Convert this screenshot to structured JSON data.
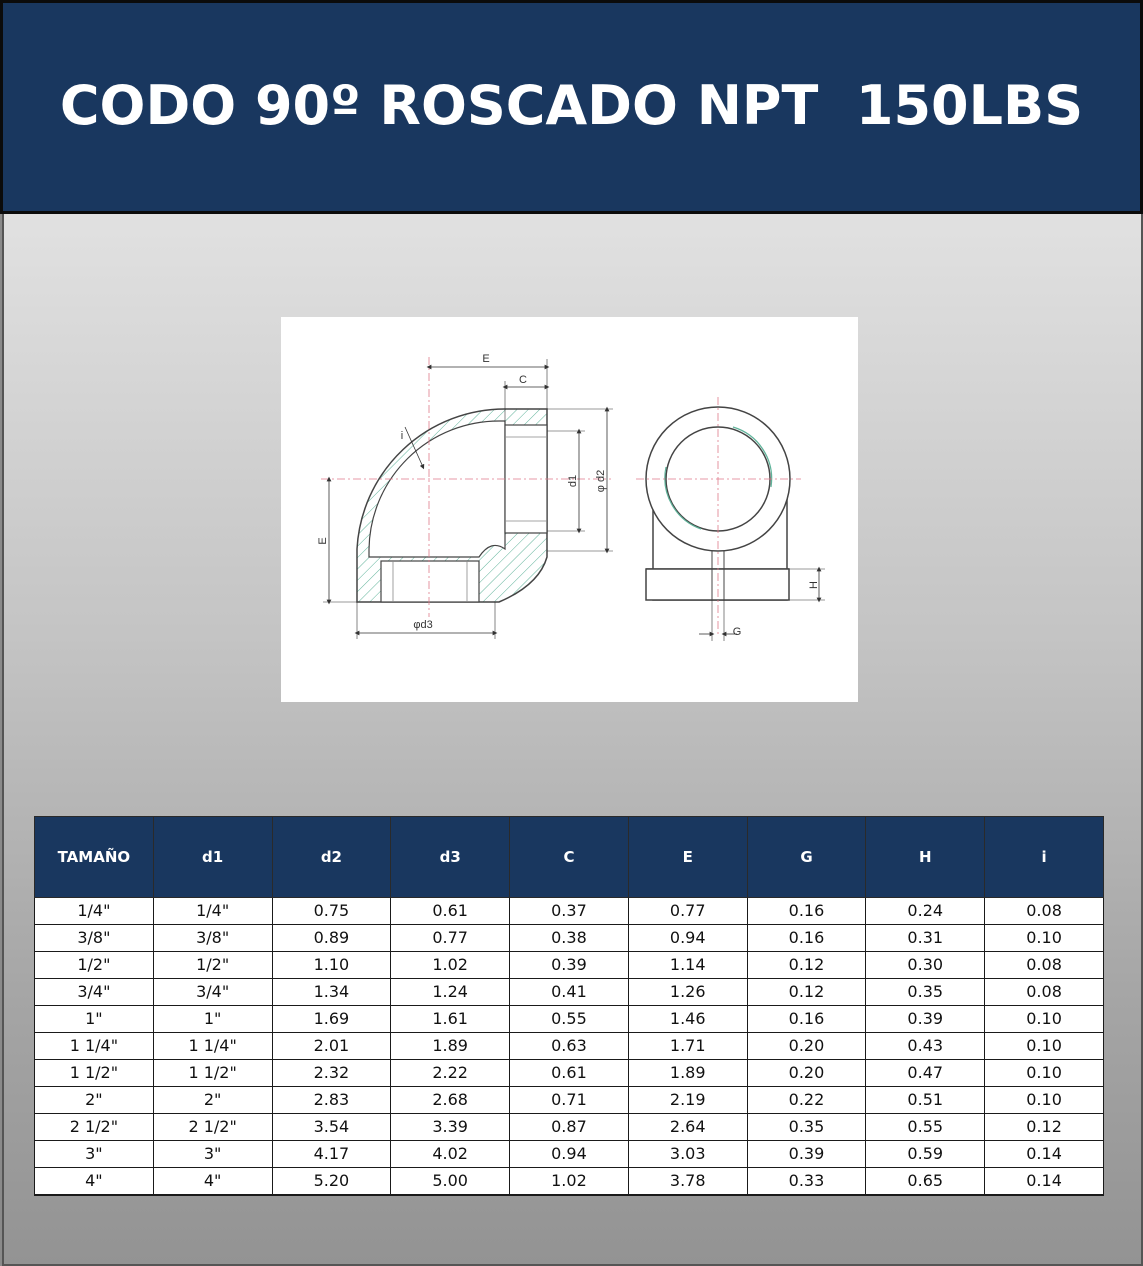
{
  "header": {
    "title": "CODO 90º ROSCADO NPT  150LBS"
  },
  "drawing": {
    "labels": {
      "E_top": "E",
      "C": "C",
      "i": "i",
      "d1": "d1",
      "d2": "φ d2",
      "E_left": "E",
      "d3": "φd3",
      "H": "H",
      "G": "G"
    }
  },
  "table": {
    "headers": [
      "TAMAÑO",
      "d1",
      "d2",
      "d3",
      "C",
      "E",
      "G",
      "H",
      "i"
    ],
    "rows": [
      [
        "1/4\"",
        "1/4\"",
        "0.75",
        "0.61",
        "0.37",
        "0.77",
        "0.16",
        "0.24",
        "0.08"
      ],
      [
        "3/8\"",
        "3/8\"",
        "0.89",
        "0.77",
        "0.38",
        "0.94",
        "0.16",
        "0.31",
        "0.10"
      ],
      [
        "1/2\"",
        "1/2\"",
        "1.10",
        "1.02",
        "0.39",
        "1.14",
        "0.12",
        "0.30",
        "0.08"
      ],
      [
        "3/4\"",
        "3/4\"",
        "1.34",
        "1.24",
        "0.41",
        "1.26",
        "0.12",
        "0.35",
        "0.08"
      ],
      [
        "1\"",
        "1\"",
        "1.69",
        "1.61",
        "0.55",
        "1.46",
        "0.16",
        "0.39",
        "0.10"
      ],
      [
        "1 1/4\"",
        "1 1/4\"",
        "2.01",
        "1.89",
        "0.63",
        "1.71",
        "0.20",
        "0.43",
        "0.10"
      ],
      [
        "1 1/2\"",
        "1 1/2\"",
        "2.32",
        "2.22",
        "0.61",
        "1.89",
        "0.20",
        "0.47",
        "0.10"
      ],
      [
        "2\"",
        "2\"",
        "2.83",
        "2.68",
        "0.71",
        "2.19",
        "0.22",
        "0.51",
        "0.10"
      ],
      [
        "2 1/2\"",
        "2 1/2\"",
        "3.54",
        "3.39",
        "0.87",
        "2.64",
        "0.35",
        "0.55",
        "0.12"
      ],
      [
        "3\"",
        "3\"",
        "4.17",
        "4.02",
        "0.94",
        "3.03",
        "0.39",
        "0.59",
        "0.14"
      ],
      [
        "4\"",
        "4\"",
        "5.20",
        "5.00",
        "1.02",
        "3.78",
        "0.33",
        "0.65",
        "0.14"
      ]
    ]
  },
  "colors": {
    "header_bg": "#19375f",
    "header_text": "#ffffff",
    "hatch": "#5fb39a",
    "centerline": "#e07a8a"
  }
}
